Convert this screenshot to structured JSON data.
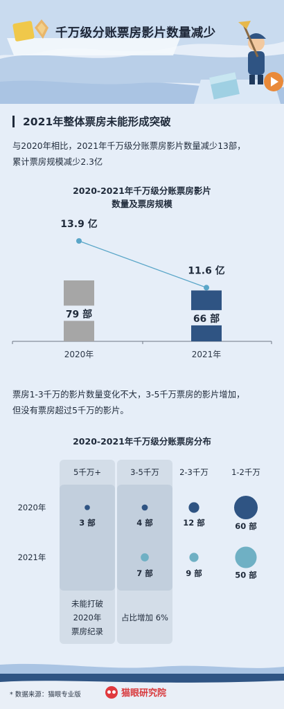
{
  "header": {
    "title": "千万级分账票房影片数量减少"
  },
  "section": {
    "heading": "2021年整体票房未能形成突破",
    "intro_lines": [
      "与2020年相比，2021年千万级分账票房影片数量减少13部，",
      "累计票房规模减少2.3亿"
    ],
    "middle_lines": [
      "票房1-3千万的影片数量变化不大，3-5千万票房的影片增加，",
      "但没有票房超过5千万的影片。"
    ]
  },
  "colors": {
    "bar_2020": "#a6a6a6",
    "bar_2021": "#2f5483",
    "line": "#5aa6c8",
    "bubble_2020": "#2f5483",
    "bubble_2021": "#6fb0c4",
    "panel": "#d3dde8",
    "page_bg": "#e6eef8"
  },
  "chart_data": [
    {
      "type": "bar",
      "title_lines": [
        "2020-2021年千万级分账票房影片",
        "数量及票房规模"
      ],
      "categories": [
        "2020年",
        "2021年"
      ],
      "series": [
        {
          "values": [
            79,
            66
          ],
          "labels": [
            "79 部",
            "66 部"
          ]
        },
        {
          "values": [
            13.9,
            11.6
          ],
          "labels": [
            "13.9 亿",
            "11.6 亿"
          ]
        }
      ]
    },
    {
      "type": "scatter",
      "title": "2020-2021年千万级分账票房分布",
      "columns": [
        "5千万+",
        "3-5千万",
        "2-3千万",
        "1-2千万"
      ],
      "rows": [
        "2020年",
        "2021年"
      ],
      "values": [
        [
          3,
          4,
          12,
          60
        ],
        [
          null,
          7,
          9,
          50
        ]
      ],
      "labels": [
        [
          "3 部",
          "4 部",
          "12 部",
          "60 部"
        ],
        [
          "",
          "7 部",
          "9 部",
          "50 部"
        ]
      ],
      "notes": [
        [
          "未能打破",
          "2020年",
          "票房纪录"
        ],
        [
          "占比增加 6%"
        ]
      ]
    }
  ],
  "footer": {
    "source": "* 数据来源：猫眼专业版",
    "brand": "猫眼研究院"
  }
}
